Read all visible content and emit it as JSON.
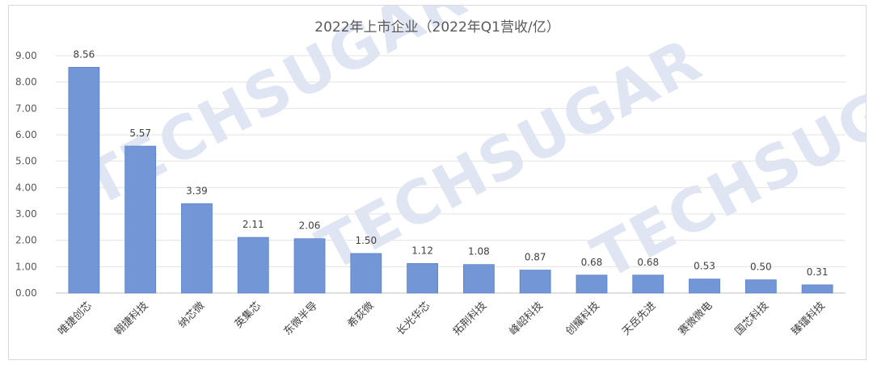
{
  "chart_data": {
    "type": "bar",
    "title": "2022年上市企业（2022年Q1营收/亿）",
    "xlabel": "",
    "ylabel": "",
    "categories": [
      "唯捷创芯",
      "翱捷科技",
      "纳芯微",
      "英集芯",
      "东微半导",
      "希荻微",
      "长光华芯",
      "拓荆科技",
      "峰岹科技",
      "创耀科技",
      "天岳先进",
      "赛微微电",
      "国芯科技",
      "臻镭科技"
    ],
    "values": [
      8.56,
      5.57,
      3.39,
      2.11,
      2.06,
      1.5,
      1.12,
      1.08,
      0.87,
      0.68,
      0.68,
      0.53,
      0.5,
      0.31
    ],
    "value_labels": [
      "8.56",
      "5.57",
      "3.39",
      "2.11",
      "2.06",
      "1.50",
      "1.12",
      "1.08",
      "0.87",
      "0.68",
      "0.68",
      "0.53",
      "0.50",
      "0.31"
    ],
    "ylim": [
      0,
      9
    ],
    "yticks": [
      "0.00",
      "1.00",
      "2.00",
      "3.00",
      "4.00",
      "5.00",
      "6.00",
      "7.00",
      "8.00",
      "9.00"
    ],
    "grid": true,
    "legend": "none",
    "bar_color": "#7396d6",
    "bar_edge_color": "#5a80c8"
  },
  "watermark": {
    "text": "TECHSUGAR"
  }
}
